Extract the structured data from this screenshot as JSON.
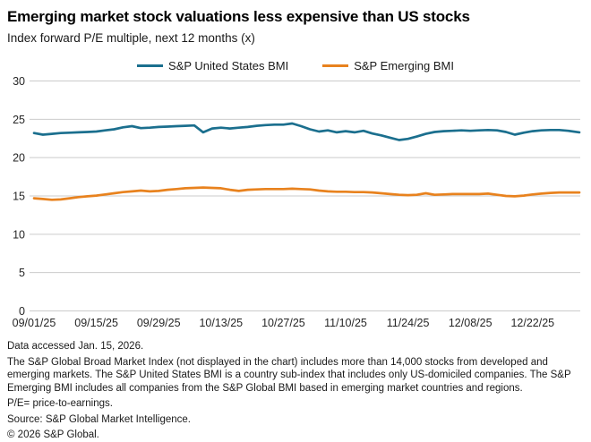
{
  "header": {
    "title": "Emerging market stock valuations less expensive than US stocks",
    "subtitle": "Index forward P/E multiple, next 12 months (x)"
  },
  "chart_data": {
    "type": "line",
    "title": "Emerging market stock valuations less expensive than US stocks",
    "subtitle": "Index forward P/E multiple, next 12 months (x)",
    "ylabel": "",
    "xlabel": "",
    "ylim": [
      0,
      30
    ],
    "y_ticks": [
      0,
      5,
      10,
      15,
      20,
      25,
      30
    ],
    "grid": "horizontal",
    "legend_position": "top-center",
    "x_unit": "days since 09/01/25",
    "x_tick_days": [
      0,
      14,
      28,
      42,
      56,
      70,
      84,
      98,
      112
    ],
    "x_tick_labels": [
      "09/01/25",
      "09/15/25",
      "09/29/25",
      "10/13/25",
      "10/27/25",
      "11/10/25",
      "11/24/25",
      "12/08/25",
      "12/22/25"
    ],
    "x_days": [
      0,
      2,
      4,
      6,
      8,
      10,
      12,
      14,
      16,
      18,
      20,
      22,
      24,
      26,
      28,
      30,
      32,
      34,
      36,
      38,
      40,
      42,
      44,
      46,
      48,
      50,
      52,
      54,
      56,
      58,
      60,
      62,
      64,
      66,
      68,
      70,
      72,
      74,
      76,
      78,
      80,
      82,
      84,
      86,
      88,
      90,
      92,
      94,
      96,
      98,
      100,
      102,
      104,
      106,
      108,
      110,
      112,
      114,
      116,
      118,
      120,
      122.5
    ],
    "series": [
      {
        "name": "S&P United States BMI",
        "color": "#1b6f8e",
        "values": [
          23.2,
          23.0,
          23.1,
          23.2,
          23.25,
          23.3,
          23.35,
          23.4,
          23.55,
          23.7,
          23.95,
          24.1,
          23.85,
          23.9,
          24.0,
          24.05,
          24.1,
          24.15,
          24.2,
          23.3,
          23.8,
          23.9,
          23.8,
          23.9,
          24.0,
          24.15,
          24.25,
          24.3,
          24.3,
          24.45,
          24.1,
          23.7,
          23.4,
          23.55,
          23.3,
          23.45,
          23.3,
          23.5,
          23.15,
          22.9,
          22.6,
          22.3,
          22.45,
          22.75,
          23.1,
          23.35,
          23.45,
          23.5,
          23.55,
          23.5,
          23.55,
          23.6,
          23.55,
          23.35,
          23.0,
          23.25,
          23.45,
          23.55,
          23.6,
          23.6,
          23.5,
          23.3
        ]
      },
      {
        "name": "S&P Emerging BMI",
        "color": "#e8821e",
        "values": [
          14.7,
          14.6,
          14.5,
          14.55,
          14.7,
          14.85,
          14.95,
          15.05,
          15.2,
          15.35,
          15.5,
          15.6,
          15.7,
          15.6,
          15.65,
          15.8,
          15.9,
          16.0,
          16.05,
          16.1,
          16.05,
          16.0,
          15.8,
          15.65,
          15.8,
          15.85,
          15.9,
          15.9,
          15.9,
          15.95,
          15.9,
          15.85,
          15.7,
          15.6,
          15.55,
          15.55,
          15.5,
          15.5,
          15.45,
          15.35,
          15.25,
          15.15,
          15.1,
          15.15,
          15.35,
          15.15,
          15.2,
          15.25,
          15.25,
          15.25,
          15.25,
          15.3,
          15.15,
          15.0,
          14.95,
          15.05,
          15.2,
          15.3,
          15.4,
          15.45,
          15.45,
          15.45
        ]
      }
    ],
    "colors": {
      "grid": "#cbcbcb",
      "axis_text": "#262626"
    }
  },
  "footnotes": {
    "data_accessed": "Data accessed Jan. 15, 2026.",
    "description": "The S&P Global Broad Market Index (not displayed in the chart) includes more than 14,000 stocks from developed and emerging markets. The S&P United States BMI is a country sub-index that includes only US-domiciled companies. The S&P Emerging BMI includes all companies from the S&P Global BMI based in emerging market countries and regions.",
    "pe_note": "P/E= price-to-earnings.",
    "source": "Source: S&P Global Market Intelligence.",
    "copyright": "© 2026 S&P Global."
  }
}
